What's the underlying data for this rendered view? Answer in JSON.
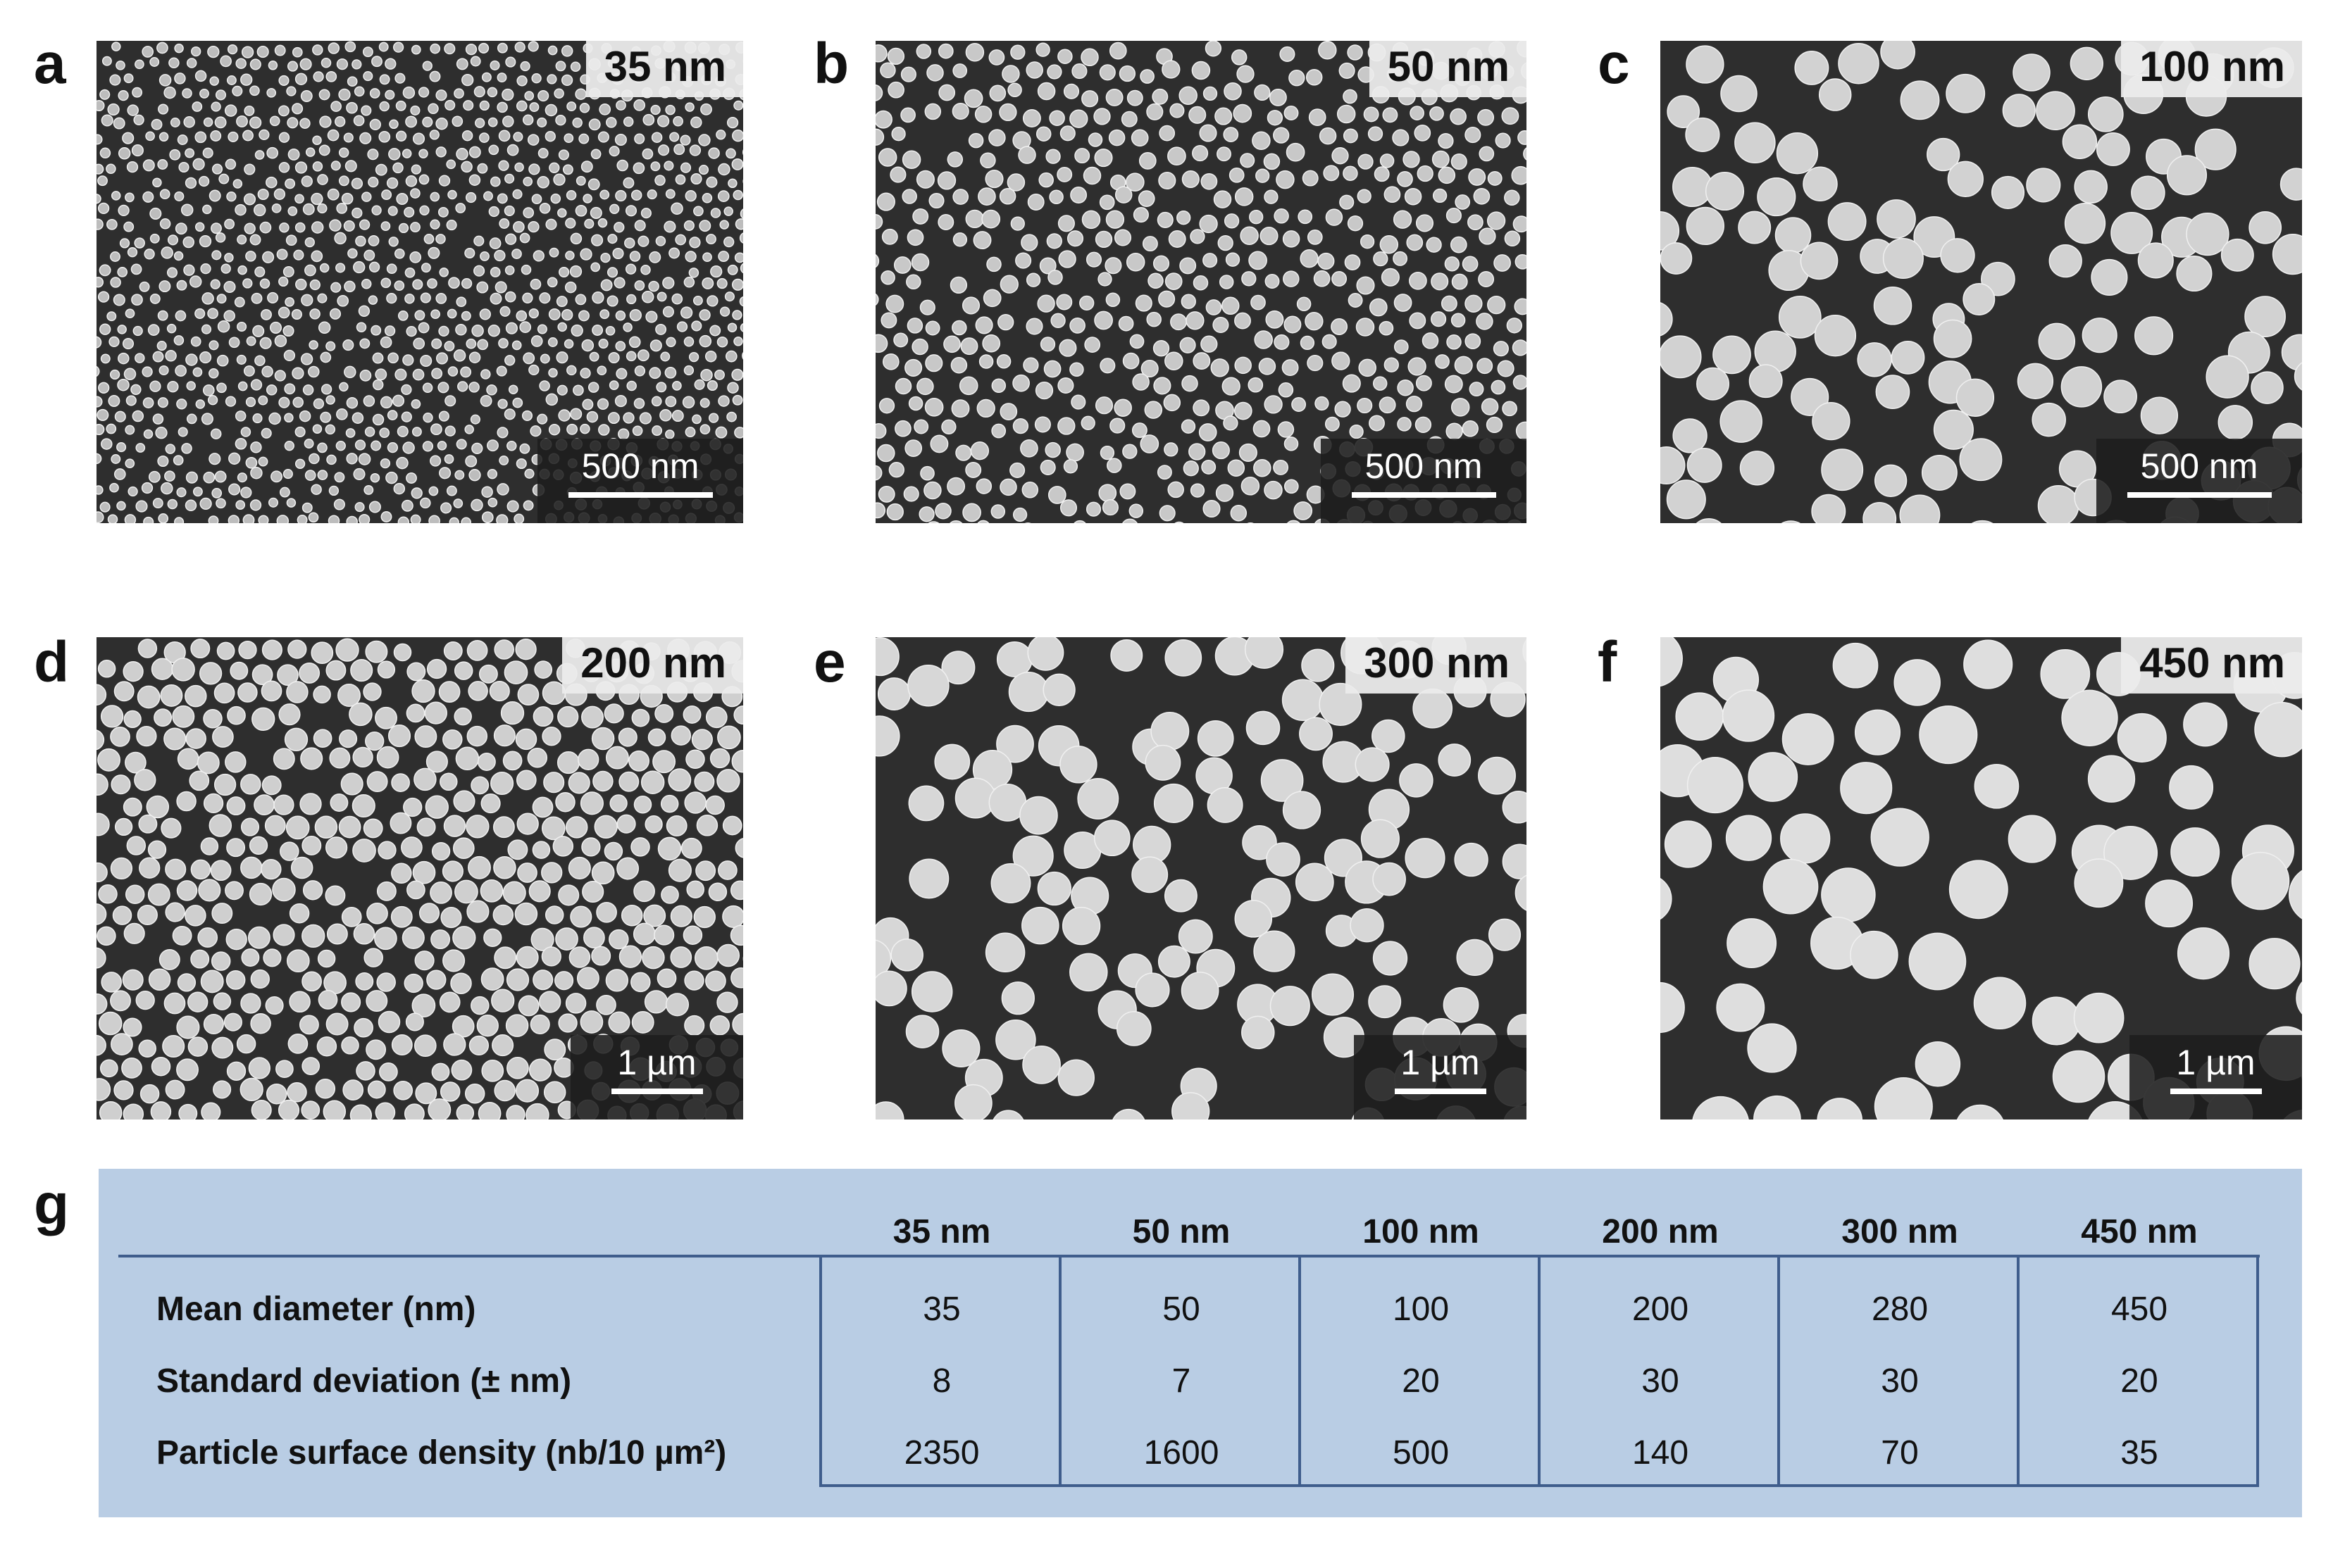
{
  "panels": [
    {
      "letter": "a",
      "size_label": "35 nm",
      "scale_label": "500 nm"
    },
    {
      "letter": "b",
      "size_label": "50 nm",
      "scale_label": "500 nm"
    },
    {
      "letter": "c",
      "size_label": "100 nm",
      "scale_label": "500 nm"
    },
    {
      "letter": "d",
      "size_label": "200 nm",
      "scale_label": "1 µm"
    },
    {
      "letter": "e",
      "size_label": "300 nm",
      "scale_label": "1 µm"
    },
    {
      "letter": "f",
      "size_label": "450 nm",
      "scale_label": "1 µm"
    }
  ],
  "table": {
    "letter": "g",
    "columns": [
      "35 nm",
      "50 nm",
      "100 nm",
      "200 nm",
      "300 nm",
      "450 nm"
    ],
    "rows": [
      {
        "label": "Mean diameter (nm)",
        "values": [
          "35",
          "50",
          "100",
          "200",
          "280",
          "450"
        ]
      },
      {
        "label": "Standard deviation (± nm)",
        "values": [
          "8",
          "7",
          "20",
          "30",
          "30",
          "20"
        ]
      },
      {
        "label": "Particle surface density (nb/10 µm²)",
        "values": [
          "2350",
          "1600",
          "500",
          "140",
          "70",
          "35"
        ]
      }
    ]
  }
}
